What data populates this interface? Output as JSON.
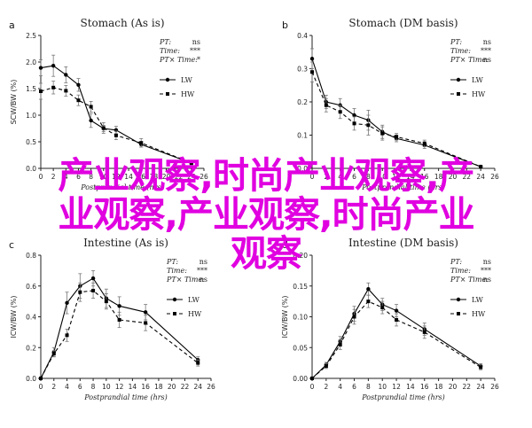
{
  "colors": {
    "lw": "#000000",
    "hw": "#000000",
    "watermark": "#e000e0"
  },
  "watermark": {
    "line1": "产业观察,时尚产业观察,产",
    "line2": "业观察,产业观察,时尚产业",
    "line3": "观察"
  },
  "chart_data": [
    {
      "type": "line",
      "panel_letter": "a",
      "title": "Stomach (As is)",
      "xlabel": "Postprandial time (hrs)",
      "ylabel": "SCW/BW (%)",
      "ylim": [
        0,
        2.5
      ],
      "yticks": [
        "0.0",
        "0.5",
        "1.0",
        "1.5",
        "2.0",
        "2.5"
      ],
      "xlim": [
        0,
        26
      ],
      "xticks": [
        "0",
        "2",
        "4",
        "6",
        "8",
        "10",
        "12",
        "14",
        "16",
        "18",
        "20",
        "22",
        "24",
        "26"
      ],
      "x": [
        0,
        2,
        4,
        6,
        8,
        10,
        12,
        16,
        24
      ],
      "series": [
        {
          "name": "LW",
          "style": "solid",
          "values": [
            1.89,
            1.93,
            1.76,
            1.57,
            0.9,
            0.75,
            0.72,
            0.45,
            0.1
          ],
          "err": [
            0.15,
            0.2,
            0.15,
            0.12,
            0.13,
            0.06,
            0.07,
            0.05,
            0.03
          ]
        },
        {
          "name": "HW",
          "style": "dashed",
          "values": [
            1.45,
            1.52,
            1.46,
            1.28,
            1.16,
            0.76,
            0.62,
            0.48,
            0.1
          ],
          "err": [
            0.15,
            0.12,
            0.1,
            0.1,
            0.1,
            0.1,
            0.08,
            0.08,
            0.04
          ]
        }
      ],
      "stats": [
        {
          "label": "PT:",
          "value": "ns"
        },
        {
          "label": "Time:",
          "value": "***"
        },
        {
          "label": "PT× Time:",
          "value": "*"
        }
      ]
    },
    {
      "type": "line",
      "panel_letter": "b",
      "title": "Stomach (DM basis)",
      "xlabel": "Postprandial time (hrs)",
      "ylabel": "",
      "ylim": [
        0,
        0.4
      ],
      "yticks": [
        "0.0",
        "0.1",
        "0.2",
        "0.3",
        "0.4"
      ],
      "xlim": [
        0,
        26
      ],
      "xticks": [
        "0",
        "2",
        "4",
        "6",
        "8",
        "10",
        "12",
        "14",
        "16",
        "18",
        "20",
        "22",
        "24",
        "26"
      ],
      "x": [
        0,
        2,
        4,
        6,
        8,
        10,
        12,
        16,
        24
      ],
      "series": [
        {
          "name": "LW",
          "style": "solid",
          "values": [
            0.33,
            0.2,
            0.19,
            0.16,
            0.145,
            0.11,
            0.09,
            0.07,
            0.005
          ],
          "err": [
            0.03,
            0.02,
            0.02,
            0.02,
            0.03,
            0.02,
            0.01,
            0.01,
            0.003
          ]
        },
        {
          "name": "HW",
          "style": "dashed",
          "values": [
            0.29,
            0.19,
            0.17,
            0.135,
            0.13,
            0.105,
            0.095,
            0.075,
            0.005
          ],
          "err": [
            0.03,
            0.02,
            0.02,
            0.02,
            0.03,
            0.02,
            0.01,
            0.01,
            0.003
          ]
        }
      ],
      "stats": [
        {
          "label": "PT:",
          "value": "ns"
        },
        {
          "label": "Time:",
          "value": "***"
        },
        {
          "label": "PT× Time:",
          "value": "ns"
        }
      ]
    },
    {
      "type": "line",
      "panel_letter": "c",
      "title": "Intestine (As is)",
      "xlabel": "Postprandial time (hrs)",
      "ylabel": "ICW/BW (%)",
      "ylim": [
        0,
        0.8
      ],
      "yticks": [
        "0.0",
        "0.2",
        "0.4",
        "0.6",
        "0.8"
      ],
      "xlim": [
        0,
        26
      ],
      "xticks": [
        "0",
        "2",
        "4",
        "6",
        "8",
        "10",
        "12",
        "14",
        "16",
        "18",
        "20",
        "22",
        "24",
        "26"
      ],
      "x": [
        0,
        2,
        4,
        6,
        8,
        10,
        12,
        16,
        24
      ],
      "series": [
        {
          "name": "LW",
          "style": "solid",
          "values": [
            0.0,
            0.17,
            0.49,
            0.6,
            0.65,
            0.52,
            0.47,
            0.43,
            0.12
          ],
          "err": [
            0.0,
            0.03,
            0.07,
            0.08,
            0.05,
            0.06,
            0.06,
            0.05,
            0.02
          ]
        },
        {
          "name": "HW",
          "style": "dashed",
          "values": [
            0.0,
            0.16,
            0.28,
            0.56,
            0.57,
            0.5,
            0.38,
            0.36,
            0.1
          ],
          "err": [
            0.0,
            0.02,
            0.04,
            0.06,
            0.05,
            0.05,
            0.05,
            0.05,
            0.02
          ]
        }
      ],
      "stats": [
        {
          "label": "PT:",
          "value": "ns"
        },
        {
          "label": "Time:",
          "value": "***"
        },
        {
          "label": "PT× Time:",
          "value": "ns"
        }
      ]
    },
    {
      "type": "line",
      "panel_letter": "d",
      "title": "Intestine (DM basis)",
      "xlabel": "Postprandial time (hrs)",
      "ylabel": "ICW/BW (%)",
      "ylim": [
        0,
        0.2
      ],
      "yticks": [
        "0.00",
        "0.05",
        "0.10",
        "0.15",
        "0.20"
      ],
      "xlim": [
        0,
        26
      ],
      "xticks": [
        "0",
        "2",
        "4",
        "6",
        "8",
        "10",
        "12",
        "14",
        "16",
        "18",
        "20",
        "22",
        "24",
        "26"
      ],
      "x": [
        0,
        2,
        4,
        6,
        8,
        10,
        12,
        16,
        24
      ],
      "series": [
        {
          "name": "LW",
          "style": "solid",
          "values": [
            0.0,
            0.022,
            0.06,
            0.105,
            0.145,
            0.12,
            0.11,
            0.08,
            0.02
          ],
          "err": [
            0.0,
            0.004,
            0.008,
            0.012,
            0.01,
            0.01,
            0.01,
            0.01,
            0.004
          ]
        },
        {
          "name": "HW",
          "style": "dashed",
          "values": [
            0.0,
            0.02,
            0.055,
            0.1,
            0.125,
            0.115,
            0.095,
            0.075,
            0.018
          ],
          "err": [
            0.0,
            0.004,
            0.008,
            0.012,
            0.01,
            0.01,
            0.01,
            0.01,
            0.004
          ]
        }
      ],
      "stats": [
        {
          "label": "PT:",
          "value": "ns"
        },
        {
          "label": "Time:",
          "value": "***"
        },
        {
          "label": "PT× Time:",
          "value": "ns"
        }
      ]
    }
  ]
}
